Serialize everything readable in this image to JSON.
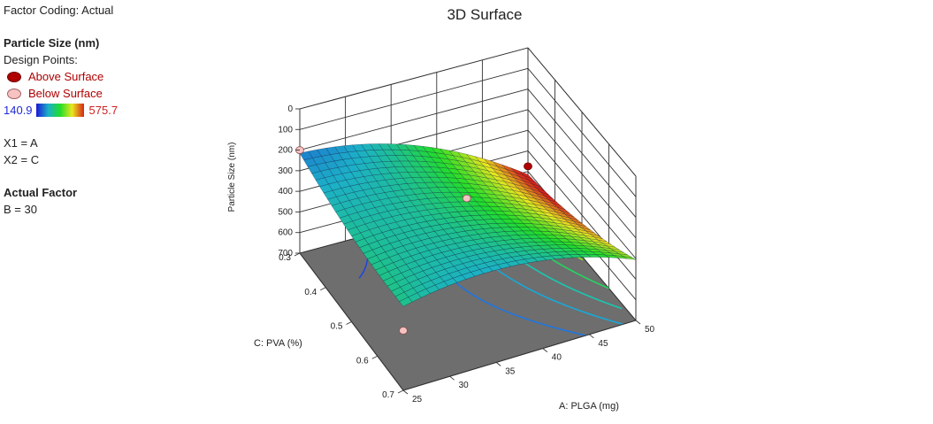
{
  "legend": {
    "factor_coding": "Factor Coding: Actual",
    "response_title": "Particle Size (nm)",
    "design_points_title": "Design Points:",
    "above_label": "Above Surface",
    "below_label": "Below Surface",
    "above_color": "#b00000",
    "below_color": "#f6c2c2",
    "range_min": "140.9",
    "range_max": "575.7",
    "x1": "X1 = A",
    "x2": "X2 = C",
    "actual_factor_title": "Actual Factor",
    "actual_factor_value": "B = 30"
  },
  "chart_data": {
    "type": "surface3d",
    "title": "3D Surface",
    "xlabel": "A: PLGA (mg)",
    "ylabel": "C: PVA (%)",
    "zlabel": "Particle Size (nm)",
    "x_ticks": [
      "25",
      "30",
      "35",
      "40",
      "45",
      "50"
    ],
    "y_ticks": [
      "0.3",
      "0.4",
      "0.5",
      "0.6",
      "0.7"
    ],
    "z_ticks": [
      "0",
      "100",
      "200",
      "300",
      "400",
      "500",
      "600",
      "700"
    ],
    "xlim": [
      25,
      50
    ],
    "ylim": [
      0.3,
      0.7
    ],
    "zlim": [
      0,
      700
    ],
    "z_axis_inverted": true,
    "colorscale": [
      "#1a18d6",
      "#1cb0c8",
      "#22dd2a",
      "#e8e820",
      "#d82418"
    ],
    "color_range": [
      140.9,
      575.7
    ],
    "design_points": [
      {
        "A": 25,
        "C": 0.3,
        "size": 200,
        "position": "below"
      },
      {
        "A": 37.5,
        "C": 0.5,
        "size": 260,
        "position": "below"
      },
      {
        "A": 25,
        "C": 0.7,
        "size": 410,
        "position": "below"
      },
      {
        "A": 50,
        "C": 0.3,
        "size": 575,
        "position": "above"
      }
    ]
  }
}
